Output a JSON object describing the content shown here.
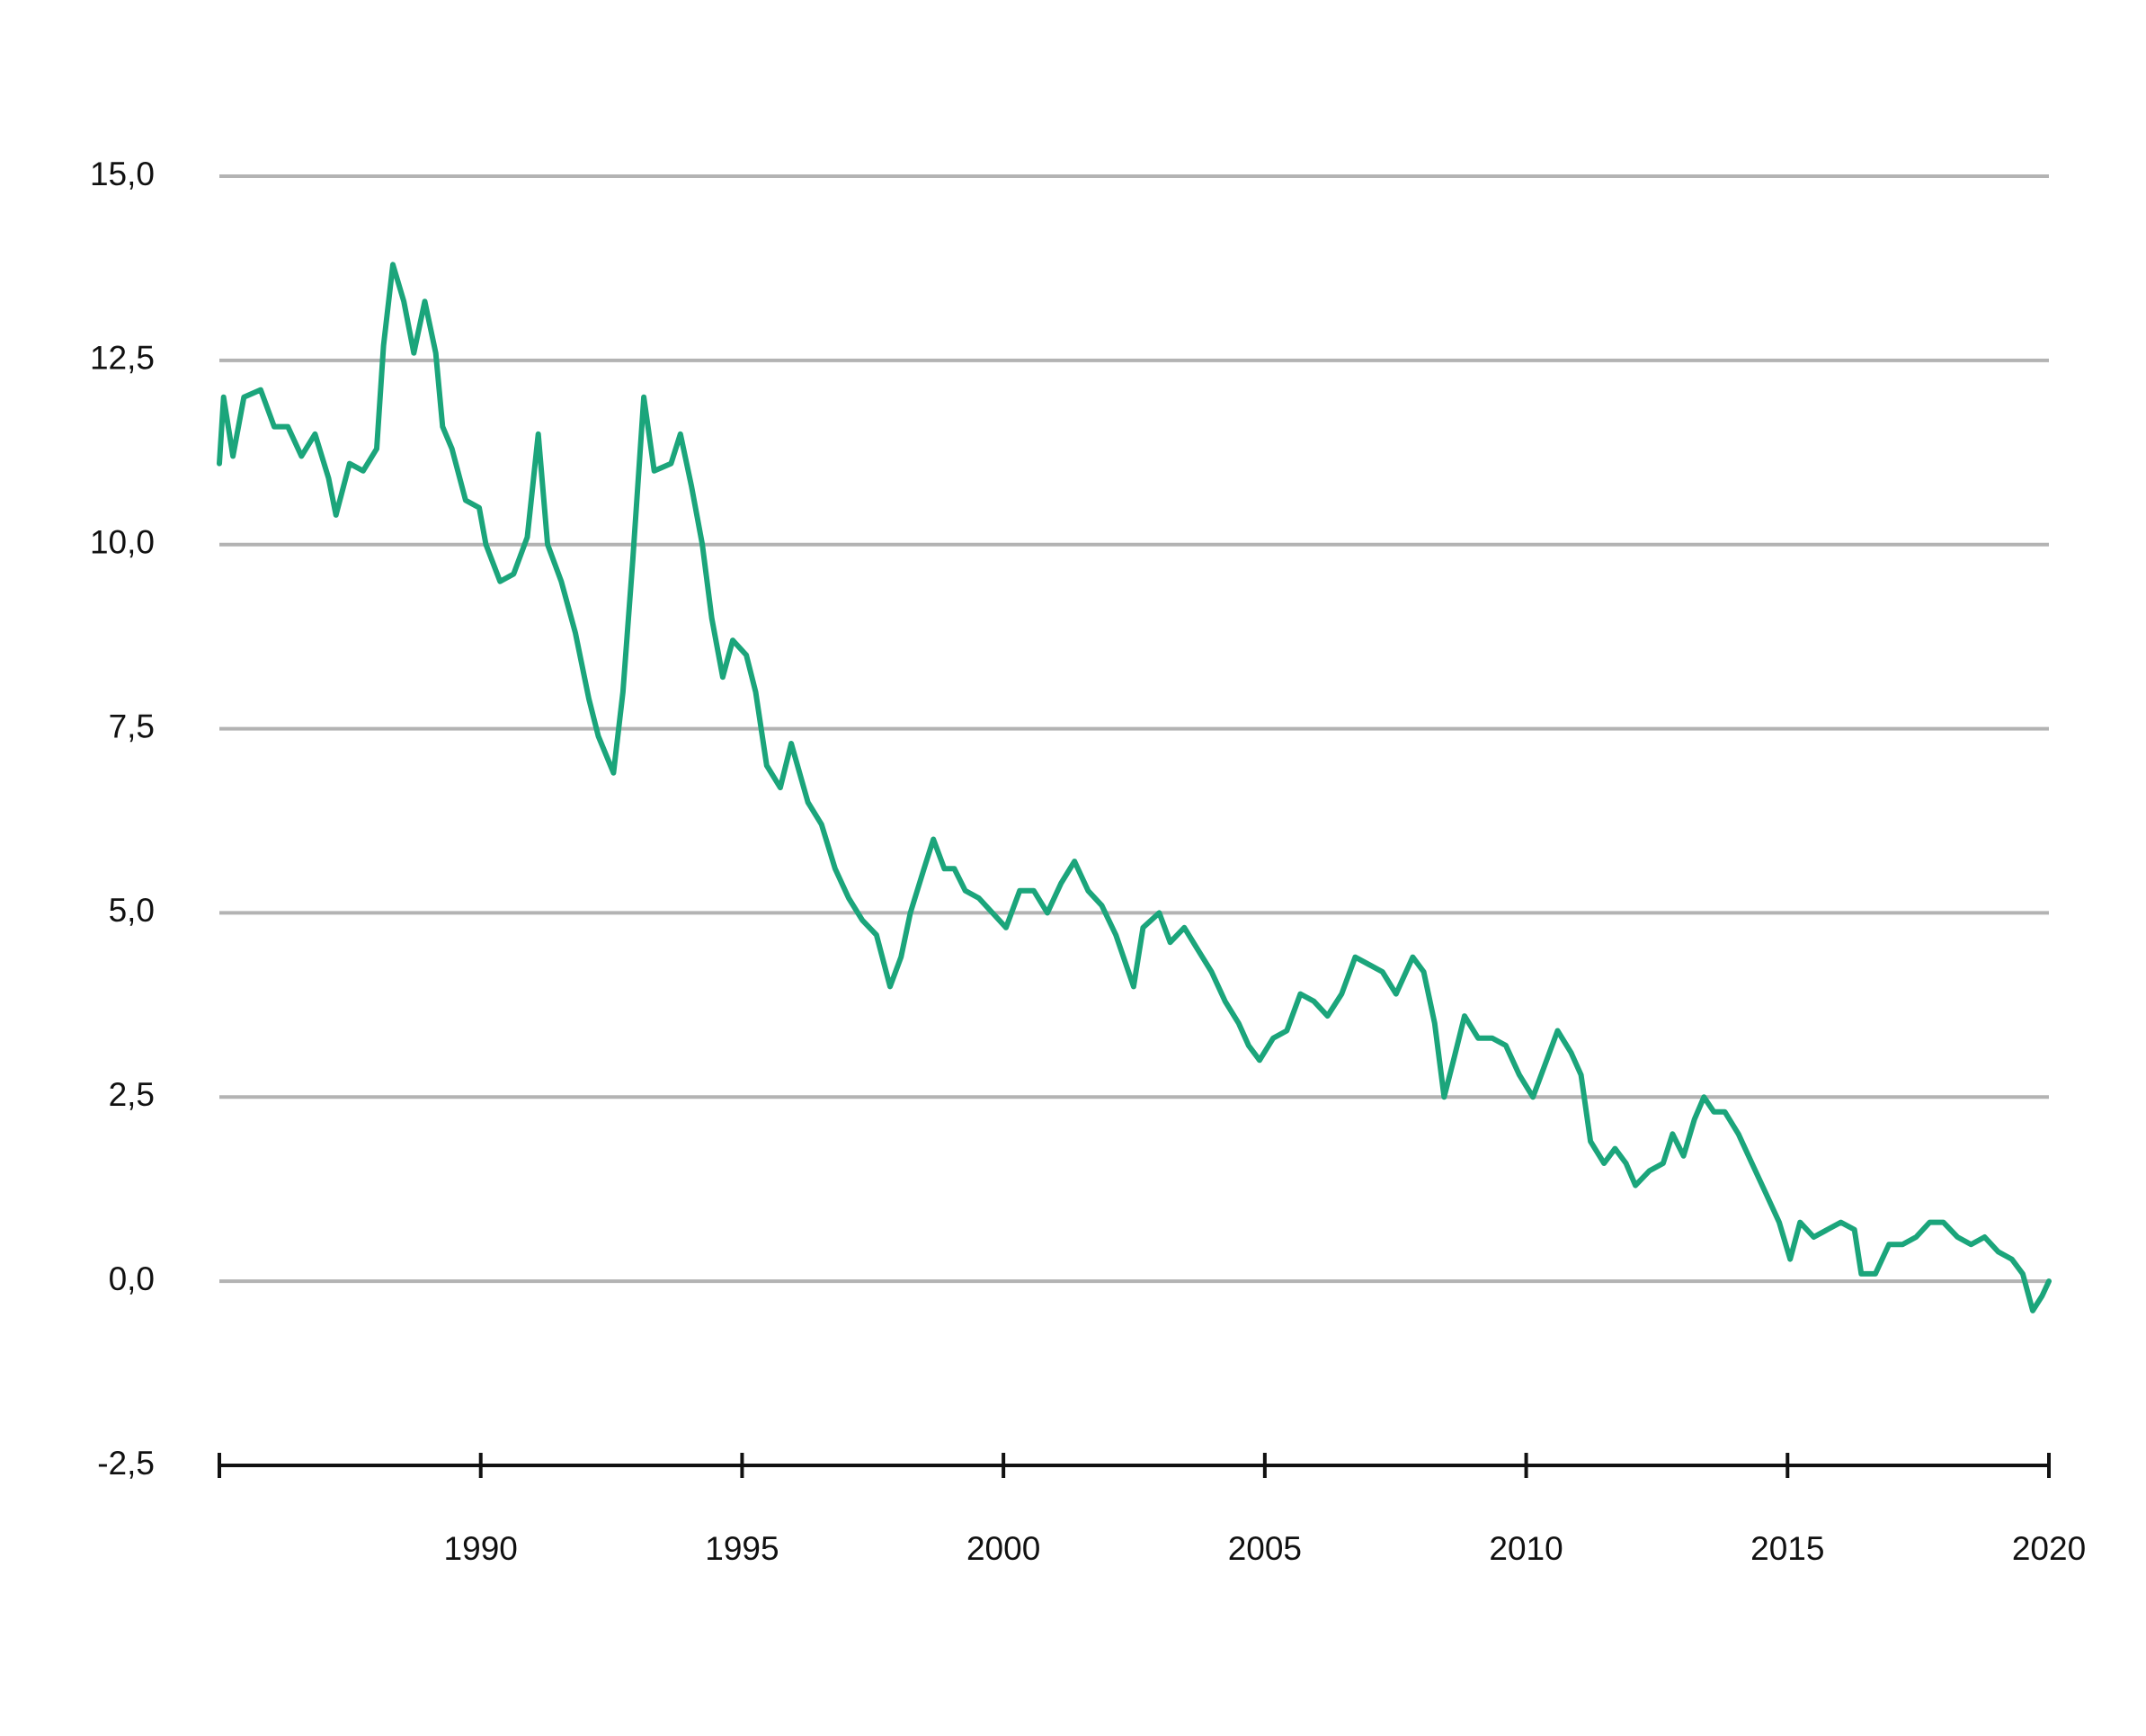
{
  "chart_data": {
    "type": "line",
    "x": [
      1985.0,
      1985.08,
      1985.26,
      1985.47,
      1985.79,
      1986.05,
      1986.31,
      1986.57,
      1986.83,
      1987.09,
      1987.23,
      1987.49,
      1987.75,
      1988.01,
      1988.14,
      1988.32,
      1988.53,
      1988.72,
      1988.93,
      1989.14,
      1989.27,
      1989.45,
      1989.71,
      1989.97,
      1990.1,
      1990.37,
      1990.63,
      1990.89,
      1991.1,
      1991.28,
      1991.54,
      1991.81,
      1992.07,
      1992.25,
      1992.54,
      1992.72,
      1992.91,
      1993.12,
      1993.32,
      1993.64,
      1993.82,
      1994.03,
      1994.24,
      1994.42,
      1994.63,
      1994.82,
      1995.08,
      1995.26,
      1995.47,
      1995.73,
      1995.94,
      1996.26,
      1996.52,
      1996.78,
      1997.04,
      1997.3,
      1997.57,
      1997.83,
      1998.04,
      1998.22,
      1998.48,
      1998.66,
      1998.87,
      1999.06,
      1999.27,
      1999.53,
      1999.79,
      2000.05,
      2000.31,
      2000.58,
      2000.84,
      2001.1,
      2001.36,
      2001.62,
      2001.88,
      2002.15,
      2002.49,
      2002.67,
      2002.98,
      2003.19,
      2003.46,
      2003.72,
      2003.98,
      2004.24,
      2004.5,
      2004.69,
      2004.9,
      2005.16,
      2005.42,
      2005.68,
      2005.94,
      2006.2,
      2006.47,
      2006.73,
      2006.99,
      2007.25,
      2007.51,
      2007.83,
      2008.04,
      2008.25,
      2008.43,
      2008.61,
      2008.82,
      2009.08,
      2009.35,
      2009.61,
      2009.87,
      2010.13,
      2010.34,
      2010.6,
      2010.86,
      2011.05,
      2011.23,
      2011.49,
      2011.7,
      2011.91,
      2012.09,
      2012.36,
      2012.62,
      2012.8,
      2013.01,
      2013.22,
      2013.4,
      2013.59,
      2013.8,
      2014.06,
      2014.32,
      2014.58,
      2014.84,
      2015.05,
      2015.24,
      2015.5,
      2015.76,
      2016.02,
      2016.28,
      2016.41,
      2016.68,
      2016.94,
      2017.2,
      2017.46,
      2017.72,
      2017.98,
      2018.25,
      2018.51,
      2018.77,
      2019.03,
      2019.29,
      2019.5,
      2019.69,
      2019.87,
      2020.0
    ],
    "series": [
      {
        "color": "#1ba57b",
        "values": [
          11.1,
          12.0,
          11.2,
          12.0,
          12.1,
          11.6,
          11.6,
          11.2,
          11.5,
          10.9,
          10.4,
          11.1,
          11.0,
          11.3,
          12.7,
          13.8,
          13.3,
          12.6,
          13.3,
          12.6,
          11.6,
          11.3,
          10.6,
          10.5,
          10.0,
          9.5,
          9.6,
          10.1,
          11.5,
          10.0,
          9.5,
          8.8,
          7.9,
          7.4,
          6.9,
          8.0,
          9.8,
          12.0,
          11.0,
          11.1,
          11.5,
          10.8,
          10.0,
          9.0,
          8.2,
          8.7,
          8.5,
          8.0,
          7.0,
          6.7,
          7.3,
          6.5,
          6.2,
          5.6,
          5.2,
          4.9,
          4.7,
          4.0,
          4.4,
          5.0,
          5.6,
          6.0,
          5.6,
          5.6,
          5.3,
          5.2,
          5.0,
          4.8,
          5.3,
          5.3,
          5.0,
          5.4,
          5.7,
          5.3,
          5.1,
          4.7,
          4.0,
          4.8,
          5.0,
          4.6,
          4.8,
          4.5,
          4.2,
          3.8,
          3.5,
          3.2,
          3.0,
          3.3,
          3.4,
          3.9,
          3.8,
          3.6,
          3.9,
          4.4,
          4.3,
          4.2,
          3.9,
          4.4,
          4.2,
          3.5,
          2.5,
          3.0,
          3.6,
          3.3,
          3.3,
          3.2,
          2.8,
          2.5,
          2.9,
          3.4,
          3.1,
          2.8,
          1.9,
          1.6,
          1.8,
          1.6,
          1.3,
          1.5,
          1.6,
          2.0,
          1.7,
          2.2,
          2.5,
          2.3,
          2.3,
          2.0,
          1.6,
          1.2,
          0.8,
          0.3,
          0.8,
          0.6,
          0.7,
          0.8,
          0.7,
          0.1,
          0.1,
          0.5,
          0.5,
          0.6,
          0.8,
          0.8,
          0.6,
          0.5,
          0.6,
          0.4,
          0.3,
          0.1,
          -0.4,
          -0.2,
          0.0
        ]
      }
    ],
    "xlim": [
      1985,
      2020
    ],
    "xticks": [
      1990,
      1995,
      2000,
      2005,
      2010,
      2015,
      2020
    ],
    "ylim": [
      -2.5,
      15
    ],
    "yticks": [
      {
        "value": -2.5,
        "label": "-2,5"
      },
      {
        "value": 0,
        "label": "0,0"
      },
      {
        "value": 2.5,
        "label": "2,5"
      },
      {
        "value": 5,
        "label": "5,0"
      },
      {
        "value": 7.5,
        "label": "7,5"
      },
      {
        "value": 10,
        "label": "10,0"
      },
      {
        "value": 12.5,
        "label": "12,5"
      },
      {
        "value": 15,
        "label": "15,0"
      }
    ],
    "grid": true
  }
}
